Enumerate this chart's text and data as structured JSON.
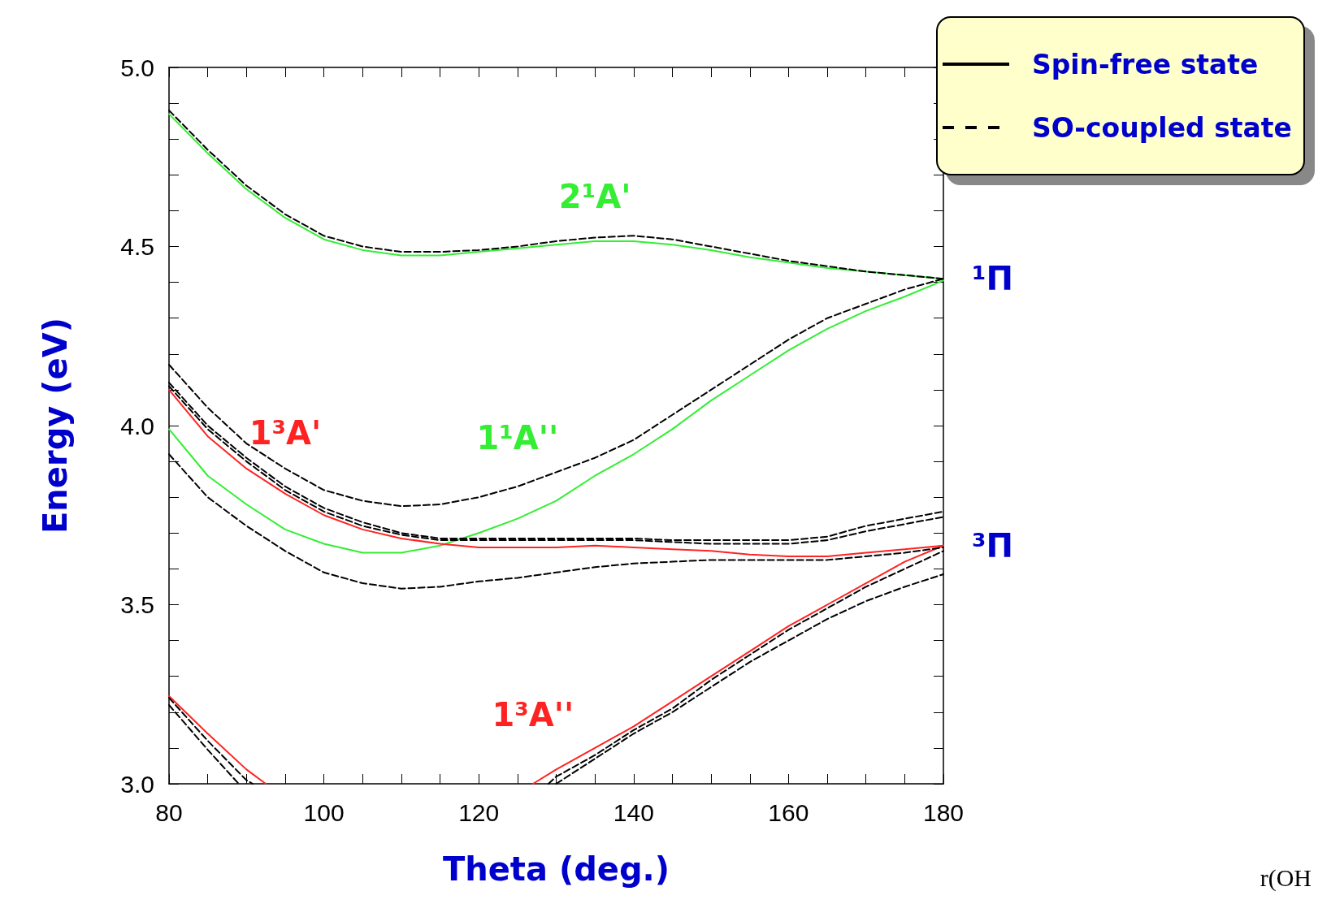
{
  "chart_data": {
    "type": "line",
    "xlabel": "Theta (deg.)",
    "ylabel": "Energy (eV)",
    "xlim": [
      80,
      180
    ],
    "ylim": [
      3.0,
      5.0
    ],
    "xticks": [
      80,
      {
        "value": 85,
        "label": null
      },
      {
        "value": 90,
        "label": null
      },
      {
        "value": 95,
        "label": null
      },
      100,
      {
        "value": 105,
        "label": null
      },
      {
        "value": 110,
        "label": null
      },
      {
        "value": 115,
        "label": null
      },
      120,
      {
        "value": 125,
        "label": null
      },
      {
        "value": 130,
        "label": null
      },
      {
        "value": 135,
        "label": null
      },
      140,
      {
        "value": 145,
        "label": null
      },
      {
        "value": 150,
        "label": null
      },
      {
        "value": 155,
        "label": null
      },
      160,
      {
        "value": 165,
        "label": null
      },
      {
        "value": 170,
        "label": null
      },
      {
        "value": 175,
        "label": null
      },
      180
    ],
    "yticks": [
      {
        "value": 3.0,
        "label": "3.0"
      },
      {
        "value": 3.1,
        "label": null
      },
      {
        "value": 3.2,
        "label": null
      },
      {
        "value": 3.3,
        "label": null
      },
      {
        "value": 3.4,
        "label": null
      },
      3.5,
      {
        "value": 3.6,
        "label": null
      },
      {
        "value": 3.7,
        "label": null
      },
      {
        "value": 3.8,
        "label": null
      },
      {
        "value": 3.9,
        "label": null
      },
      {
        "value": 4.0,
        "label": "4.0"
      },
      {
        "value": 4.1,
        "label": null
      },
      {
        "value": 4.2,
        "label": null
      },
      {
        "value": 4.3,
        "label": null
      },
      {
        "value": 4.4,
        "label": null
      },
      4.5,
      {
        "value": 4.6,
        "label": null
      },
      {
        "value": 4.7,
        "label": null
      },
      {
        "value": 4.8,
        "label": null
      },
      {
        "value": 4.9,
        "label": null
      },
      {
        "value": 5.0,
        "label": "5.0"
      }
    ],
    "x": [
      80,
      85,
      90,
      95,
      100,
      105,
      110,
      115,
      120,
      125,
      130,
      135,
      140,
      145,
      150,
      155,
      160,
      165,
      170,
      175,
      180
    ],
    "grid": false,
    "legend": false,
    "marker": "none",
    "series": [
      {
        "name": "2¹A'",
        "color": "#33ee33",
        "line_style": "solid",
        "values": [
          4.87,
          4.76,
          4.66,
          4.58,
          4.52,
          4.49,
          4.475,
          4.475,
          4.485,
          4.495,
          4.505,
          4.515,
          4.515,
          4.505,
          4.49,
          4.47,
          4.455,
          4.44,
          4.43,
          4.42,
          4.41
        ]
      },
      {
        "color": "#000000",
        "line_style": "dashed",
        "values": [
          4.88,
          4.77,
          4.67,
          4.59,
          4.53,
          4.5,
          4.485,
          4.485,
          4.49,
          4.5,
          4.515,
          4.525,
          4.53,
          4.52,
          4.5,
          4.48,
          4.46,
          4.445,
          4.43,
          4.42,
          4.41
        ]
      },
      {
        "name": "1¹A''",
        "color": "#33ee33",
        "line_style": "solid",
        "values": [
          3.99,
          3.86,
          3.78,
          3.71,
          3.67,
          3.645,
          3.645,
          3.665,
          3.7,
          3.74,
          3.79,
          3.86,
          3.92,
          3.99,
          4.07,
          4.14,
          4.21,
          4.27,
          4.32,
          4.36,
          4.405
        ]
      },
      {
        "color": "#000000",
        "line_style": "dashed",
        "values": [
          4.17,
          4.05,
          3.95,
          3.88,
          3.82,
          3.79,
          3.775,
          3.78,
          3.8,
          3.83,
          3.87,
          3.91,
          3.96,
          4.03,
          4.1,
          4.17,
          4.24,
          4.3,
          4.34,
          4.38,
          4.41
        ]
      },
      {
        "name": "1³A'",
        "color": "#ff2222",
        "line_style": "solid",
        "values": [
          4.1,
          3.97,
          3.88,
          3.81,
          3.75,
          3.71,
          3.685,
          3.67,
          3.66,
          3.66,
          3.66,
          3.665,
          3.66,
          3.655,
          3.65,
          3.64,
          3.635,
          3.635,
          3.645,
          3.655,
          3.665
        ]
      },
      {
        "color": "#000000",
        "line_style": "dashed",
        "values": [
          4.12,
          4.0,
          3.91,
          3.83,
          3.77,
          3.73,
          3.7,
          3.685,
          3.685,
          3.685,
          3.685,
          3.685,
          3.685,
          3.68,
          3.68,
          3.68,
          3.68,
          3.69,
          3.72,
          3.74,
          3.76
        ]
      },
      {
        "color": "#000000",
        "line_style": "dashed",
        "values": [
          4.11,
          3.99,
          3.9,
          3.82,
          3.76,
          3.72,
          3.695,
          3.68,
          3.68,
          3.68,
          3.68,
          3.68,
          3.68,
          3.675,
          3.67,
          3.67,
          3.67,
          3.68,
          3.705,
          3.725,
          3.745
        ]
      },
      {
        "color": "#000000",
        "line_style": "dashed",
        "values": [
          3.92,
          3.8,
          3.72,
          3.65,
          3.59,
          3.56,
          3.545,
          3.55,
          3.565,
          3.575,
          3.59,
          3.605,
          3.615,
          3.62,
          3.625,
          3.625,
          3.625,
          3.625,
          3.635,
          3.645,
          3.66
        ]
      },
      {
        "name": "1³A''",
        "color": "#ff2222",
        "line_style": "solid",
        "x": [
          80,
          85,
          90,
          92.5,
          110,
          127,
          130,
          135,
          140,
          145,
          150,
          155,
          160,
          165,
          170,
          175,
          180
        ],
        "values": [
          3.245,
          3.14,
          3.04,
          3.0,
          null,
          3.0,
          3.04,
          3.1,
          3.16,
          3.23,
          3.3,
          3.37,
          3.44,
          3.5,
          3.56,
          3.62,
          3.665
        ]
      },
      {
        "color": "#000000",
        "line_style": "dashed",
        "x": [
          80,
          85,
          90,
          90.8,
          110,
          129,
          130,
          135,
          140,
          145,
          150,
          155,
          160,
          165,
          170,
          175,
          180
        ],
        "values": [
          3.24,
          3.12,
          3.01,
          3.0,
          null,
          3.0,
          3.02,
          3.08,
          3.15,
          3.21,
          3.29,
          3.36,
          3.43,
          3.49,
          3.55,
          3.6,
          3.65
        ]
      },
      {
        "color": "#000000",
        "line_style": "dashed",
        "x": [
          80,
          85,
          89,
          110,
          130,
          135,
          140,
          145,
          150,
          155,
          160,
          165,
          170,
          175,
          180
        ],
        "values": [
          3.22,
          3.095,
          3.0,
          null,
          3.0,
          3.07,
          3.14,
          3.2,
          3.27,
          3.34,
          3.4,
          3.46,
          3.51,
          3.55,
          3.585
        ]
      }
    ],
    "annotations": [
      "Spin-free state",
      "SO-coupled state",
      {
        "text": "¹Π",
        "x": 180,
        "y": 4.41
      },
      {
        "text": "³Π",
        "x": 180,
        "y": 3.665
      },
      "r(OH"
    ]
  }
}
